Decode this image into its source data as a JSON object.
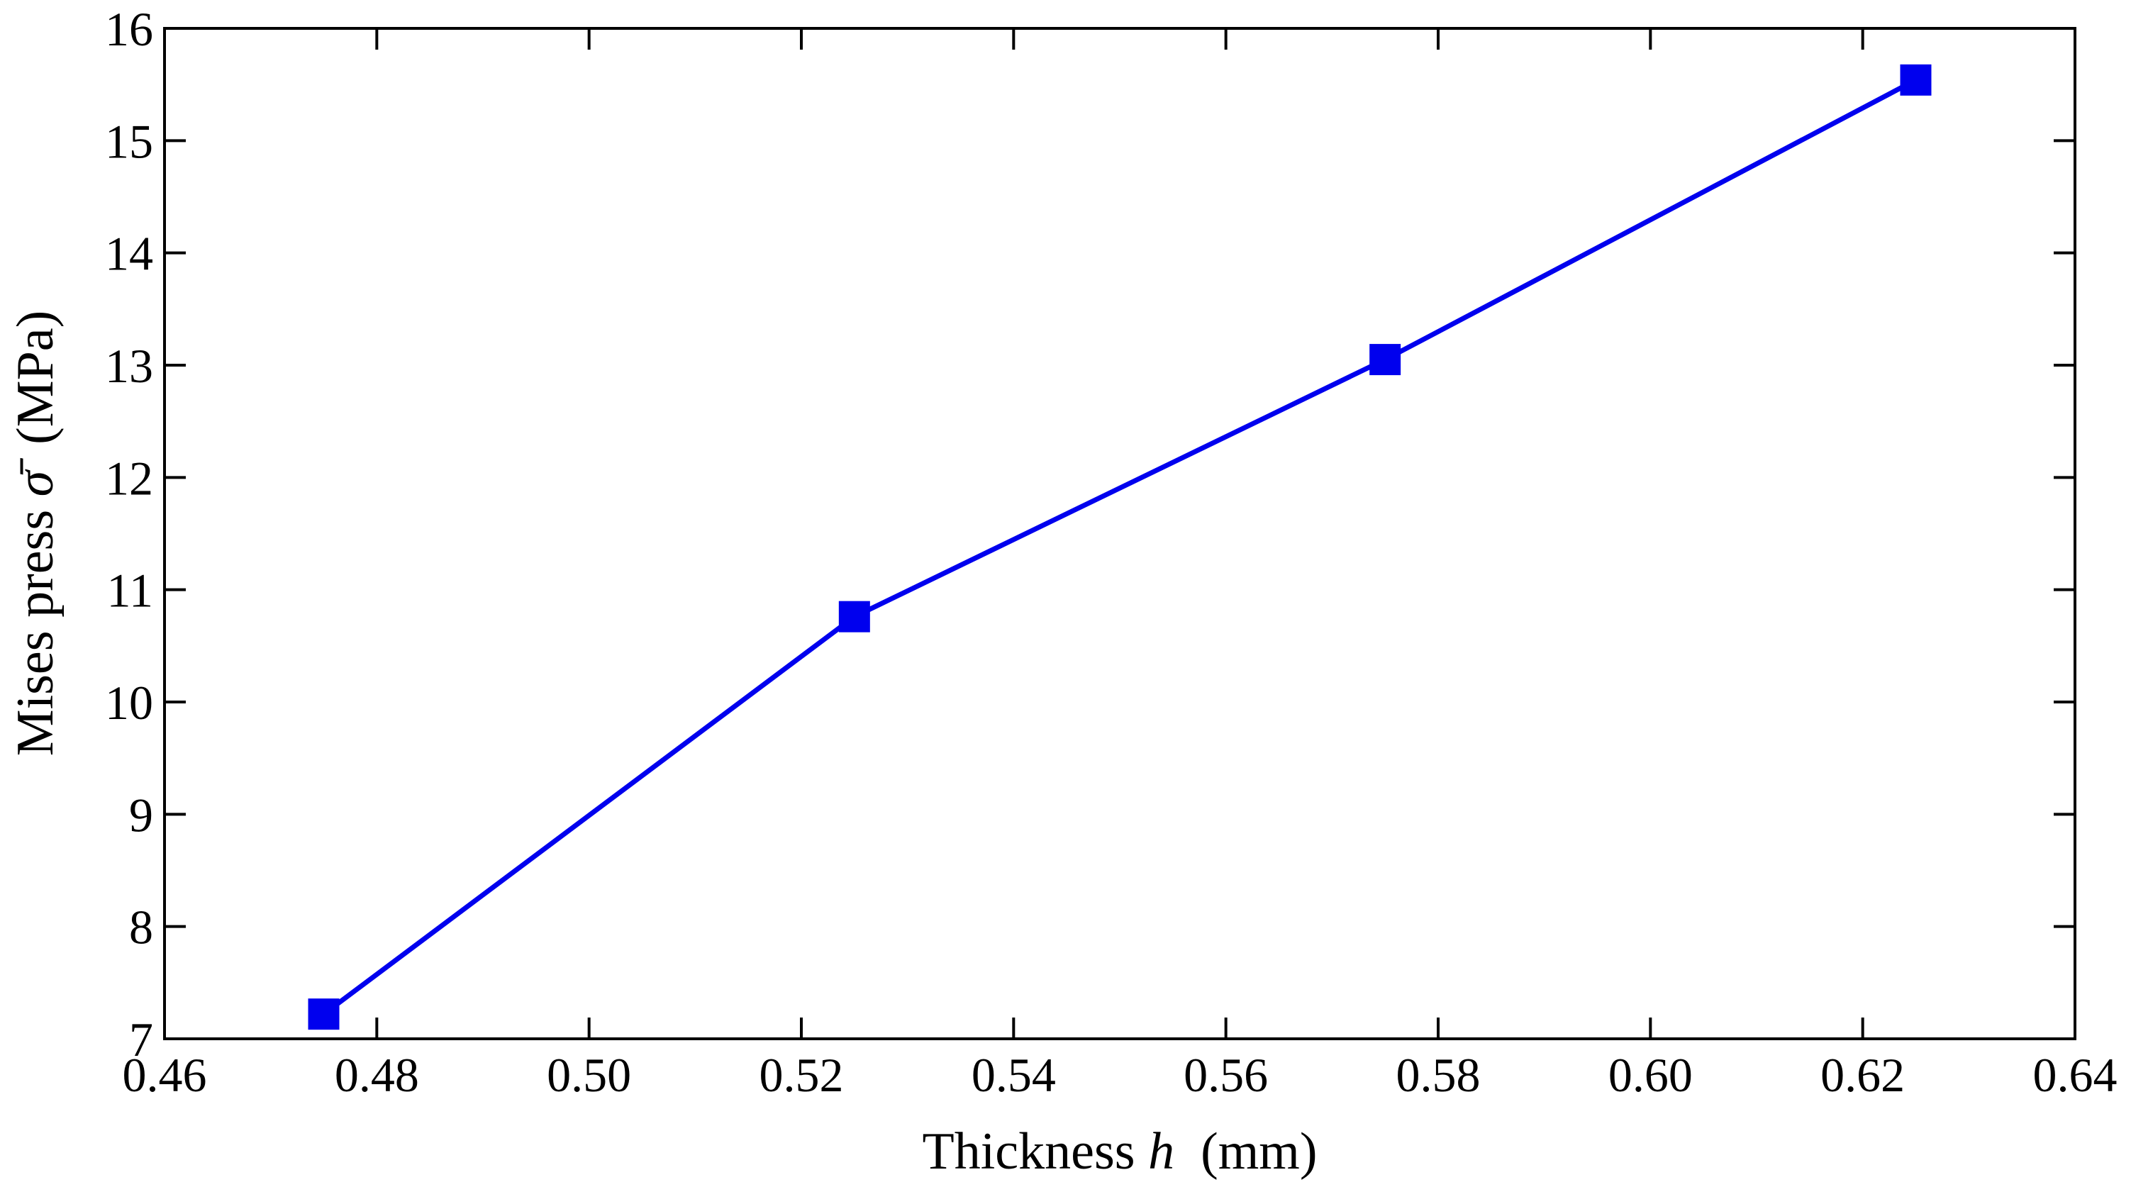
{
  "chart_data": {
    "type": "line",
    "title": "",
    "xlabel": {
      "pre": "Thickness ",
      "symbol": "h",
      "post": "  (mm)"
    },
    "ylabel": {
      "pre": "Mises press ",
      "symbol": "σ̄",
      "post": "  (MPa)"
    },
    "xlim": [
      0.46,
      0.64
    ],
    "ylim": [
      7,
      16
    ],
    "xticks": [
      "0.46",
      "0.48",
      "0.50",
      "0.52",
      "0.54",
      "0.56",
      "0.58",
      "0.60",
      "0.62",
      "0.64"
    ],
    "yticks": [
      "7",
      "8",
      "9",
      "10",
      "11",
      "12",
      "13",
      "14",
      "15",
      "16"
    ],
    "grid": false,
    "legend": "none",
    "series": [
      {
        "color": "#0000ee",
        "marker": "square",
        "x": [
          0.475,
          0.525,
          0.575,
          0.625
        ],
        "y": [
          7.22,
          10.76,
          13.05,
          15.54
        ]
      }
    ]
  }
}
